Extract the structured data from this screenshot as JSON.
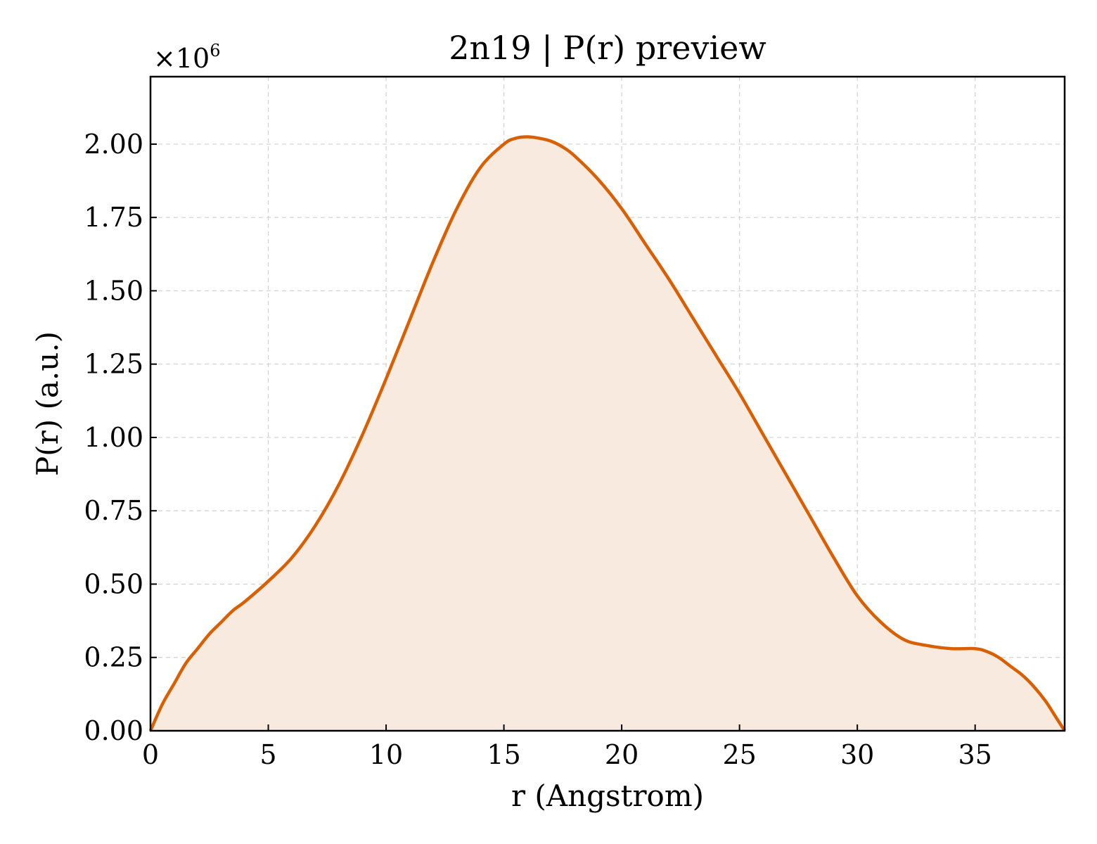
{
  "chart_data": {
    "type": "area",
    "title": "2n19 | P(r) preview",
    "xlabel": "r (Angstrom)",
    "ylabel": "P(r) (a.u.)",
    "y_multiplier": "×10",
    "y_multiplier_exp": "6",
    "xlim": [
      0,
      38.8
    ],
    "ylim": [
      0,
      2.23
    ],
    "x_ticks": [
      0,
      5,
      10,
      15,
      20,
      25,
      30,
      35
    ],
    "x_tick_labels": [
      "0",
      "5",
      "10",
      "15",
      "20",
      "25",
      "30",
      "35"
    ],
    "y_ticks": [
      0,
      0.25,
      0.5,
      0.75,
      1.0,
      1.25,
      1.5,
      1.75,
      2.0
    ],
    "y_tick_labels": [
      "0.00",
      "0.25",
      "0.50",
      "0.75",
      "1.00",
      "1.25",
      "1.50",
      "1.75",
      "2.00"
    ],
    "grid": true,
    "colors": {
      "line": "#d95f02",
      "fill": "#f9eadf"
    },
    "series": [
      {
        "x": [
          0,
          0.5,
          1,
          1.5,
          2,
          2.5,
          3,
          3.5,
          4,
          5,
          6,
          7,
          8,
          9,
          10,
          11,
          12,
          13,
          14,
          15,
          15.5,
          16,
          16.5,
          17,
          17.5,
          18,
          19,
          20,
          21,
          22,
          23,
          24,
          25,
          26,
          27,
          28,
          29,
          30,
          31,
          32,
          33,
          34,
          35,
          35.5,
          36,
          36.5,
          37,
          37.5,
          38,
          38.4,
          38.8
        ],
        "y": [
          0,
          0.09,
          0.16,
          0.23,
          0.28,
          0.33,
          0.37,
          0.41,
          0.44,
          0.51,
          0.59,
          0.7,
          0.84,
          1.01,
          1.2,
          1.4,
          1.6,
          1.78,
          1.92,
          2.0,
          2.02,
          2.025,
          2.02,
          2.01,
          1.99,
          1.96,
          1.88,
          1.78,
          1.66,
          1.54,
          1.41,
          1.28,
          1.15,
          1.01,
          0.87,
          0.73,
          0.59,
          0.46,
          0.37,
          0.31,
          0.29,
          0.28,
          0.28,
          0.27,
          0.25,
          0.22,
          0.19,
          0.15,
          0.1,
          0.05,
          0
        ]
      }
    ]
  }
}
